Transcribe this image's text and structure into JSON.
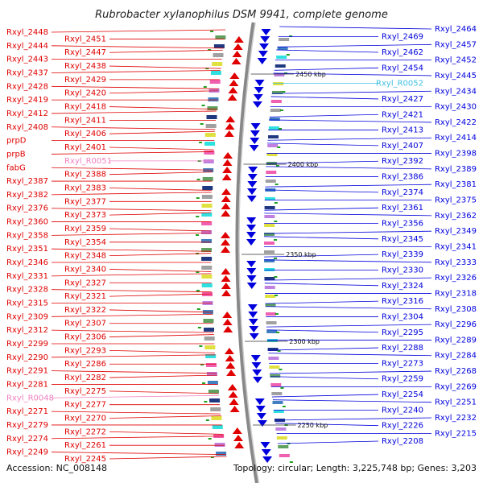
{
  "title": "Rubrobacter xylanophilus DSM 9941, complete genome",
  "footer": {
    "accession": "Accession: NC_008148",
    "info": "Topology: circular; Length: 3,225,748 bp; Genes: 3,203"
  },
  "colors": {
    "forward": "#e00000",
    "reverse": "#0000dd",
    "rna_left": "#f080c0",
    "rna_right": "#40c0e0"
  },
  "kbp_marks": [
    "2450 kbp",
    "2400 kbp",
    "2350 kbp",
    "2300 kbp",
    "2250 kbp"
  ],
  "left_labels": [
    "Rxyl_2448",
    "Rxyl_2451",
    "Rxyl_2444",
    "Rxyl_2447",
    "Rxyl_2443",
    "Rxyl_2438",
    "Rxyl_2437",
    "Rxyl_2429",
    "Rxyl_2428",
    "Rxyl_2420",
    "Rxyl_2419",
    "Rxyl_2418",
    "Rxyl_2412",
    "Rxyl_2411",
    "Rxyl_2408",
    "Rxyl_2406",
    "prpD",
    "Rxyl_2401",
    "prpB",
    "Rxyl_R0051",
    "fabG",
    "Rxyl_2388",
    "Rxyl_2387",
    "Rxyl_2383",
    "Rxyl_2382",
    "Rxyl_2377",
    "Rxyl_2376",
    "Rxyl_2373",
    "Rxyl_2360",
    "Rxyl_2359",
    "Rxyl_2358",
    "Rxyl_2354",
    "Rxyl_2351",
    "Rxyl_2348",
    "Rxyl_2346",
    "Rxyl_2340",
    "Rxyl_2331",
    "Rxyl_2327",
    "Rxyl_2328",
    "Rxyl_2321",
    "Rxyl_2315",
    "Rxyl_2322",
    "Rxyl_2309",
    "Rxyl_2307",
    "Rxyl_2312",
    "Rxyl_2306",
    "Rxyl_2299",
    "Rxyl_2293",
    "Rxyl_2290",
    "Rxyl_2286",
    "Rxyl_2291",
    "Rxyl_2282",
    "Rxyl_2281",
    "Rxyl_2275",
    "Rxyl_R0048",
    "Rxyl_2277",
    "Rxyl_2271",
    "Rxyl_2270",
    "Rxyl_2279",
    "Rxyl_2272",
    "Rxyl_2274",
    "Rxyl_2261",
    "Rxyl_2249",
    "Rxyl_2245"
  ],
  "right_labels": [
    "Rxyl_2464",
    "Rxyl_2469",
    "Rxyl_2457",
    "Rxyl_2462",
    "Rxyl_2452",
    "Rxyl_2454",
    "Rxyl_2445",
    "Rxyl_R0052",
    "Rxyl_2434",
    "Rxyl_2427",
    "Rxyl_2430",
    "Rxyl_2421",
    "Rxyl_2422",
    "Rxyl_2413",
    "Rxyl_2414",
    "Rxyl_2407",
    "Rxyl_2398",
    "Rxyl_2392",
    "Rxyl_2389",
    "Rxyl_2386",
    "Rxyl_2381",
    "Rxyl_2374",
    "Rxyl_2375",
    "Rxyl_2361",
    "Rxyl_2362",
    "Rxyl_2356",
    "Rxyl_2349",
    "Rxyl_2345",
    "Rxyl_2341",
    "Rxyl_2339",
    "Rxyl_2333",
    "Rxyl_2330",
    "Rxyl_2326",
    "Rxyl_2324",
    "Rxyl_2318",
    "Rxyl_2316",
    "Rxyl_2308",
    "Rxyl_2304",
    "Rxyl_2296",
    "Rxyl_2295",
    "Rxyl_2289",
    "Rxyl_2288",
    "Rxyl_2284",
    "Rxyl_2273",
    "Rxyl_2268",
    "Rxyl_2259",
    "Rxyl_2269",
    "Rxyl_2254",
    "Rxyl_2251",
    "Rxyl_2240",
    "Rxyl_2232",
    "Rxyl_2226",
    "Rxyl_2215",
    "Rxyl_2208"
  ]
}
